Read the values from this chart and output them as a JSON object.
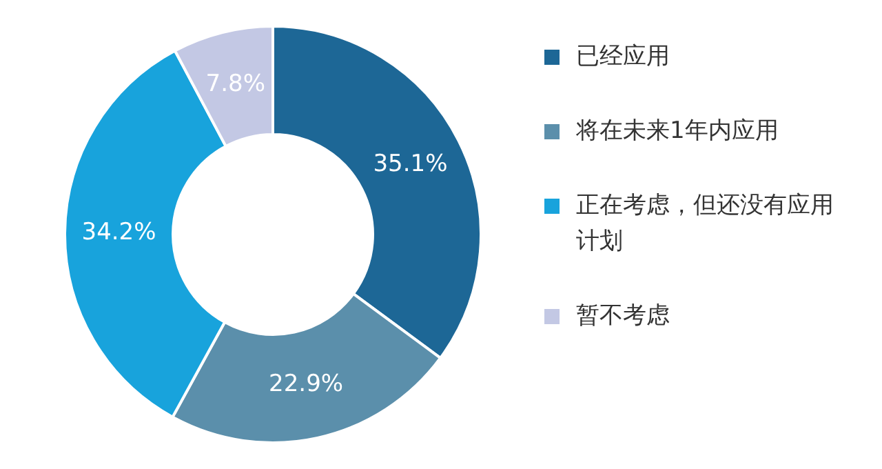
{
  "chart_data": {
    "type": "donut",
    "categories": [
      "已经应用",
      "将在未来1年内应用",
      "正在考虑，但还没有应用计划",
      "暂不考虑"
    ],
    "values": [
      35.1,
      22.9,
      34.2,
      7.8
    ],
    "colors": [
      "#1d6796",
      "#5b8fab",
      "#18a3dc",
      "#c3c8e4"
    ],
    "value_labels": [
      "35.1%",
      "22.9%",
      "34.2%",
      "7.8%"
    ],
    "legend": "right"
  }
}
